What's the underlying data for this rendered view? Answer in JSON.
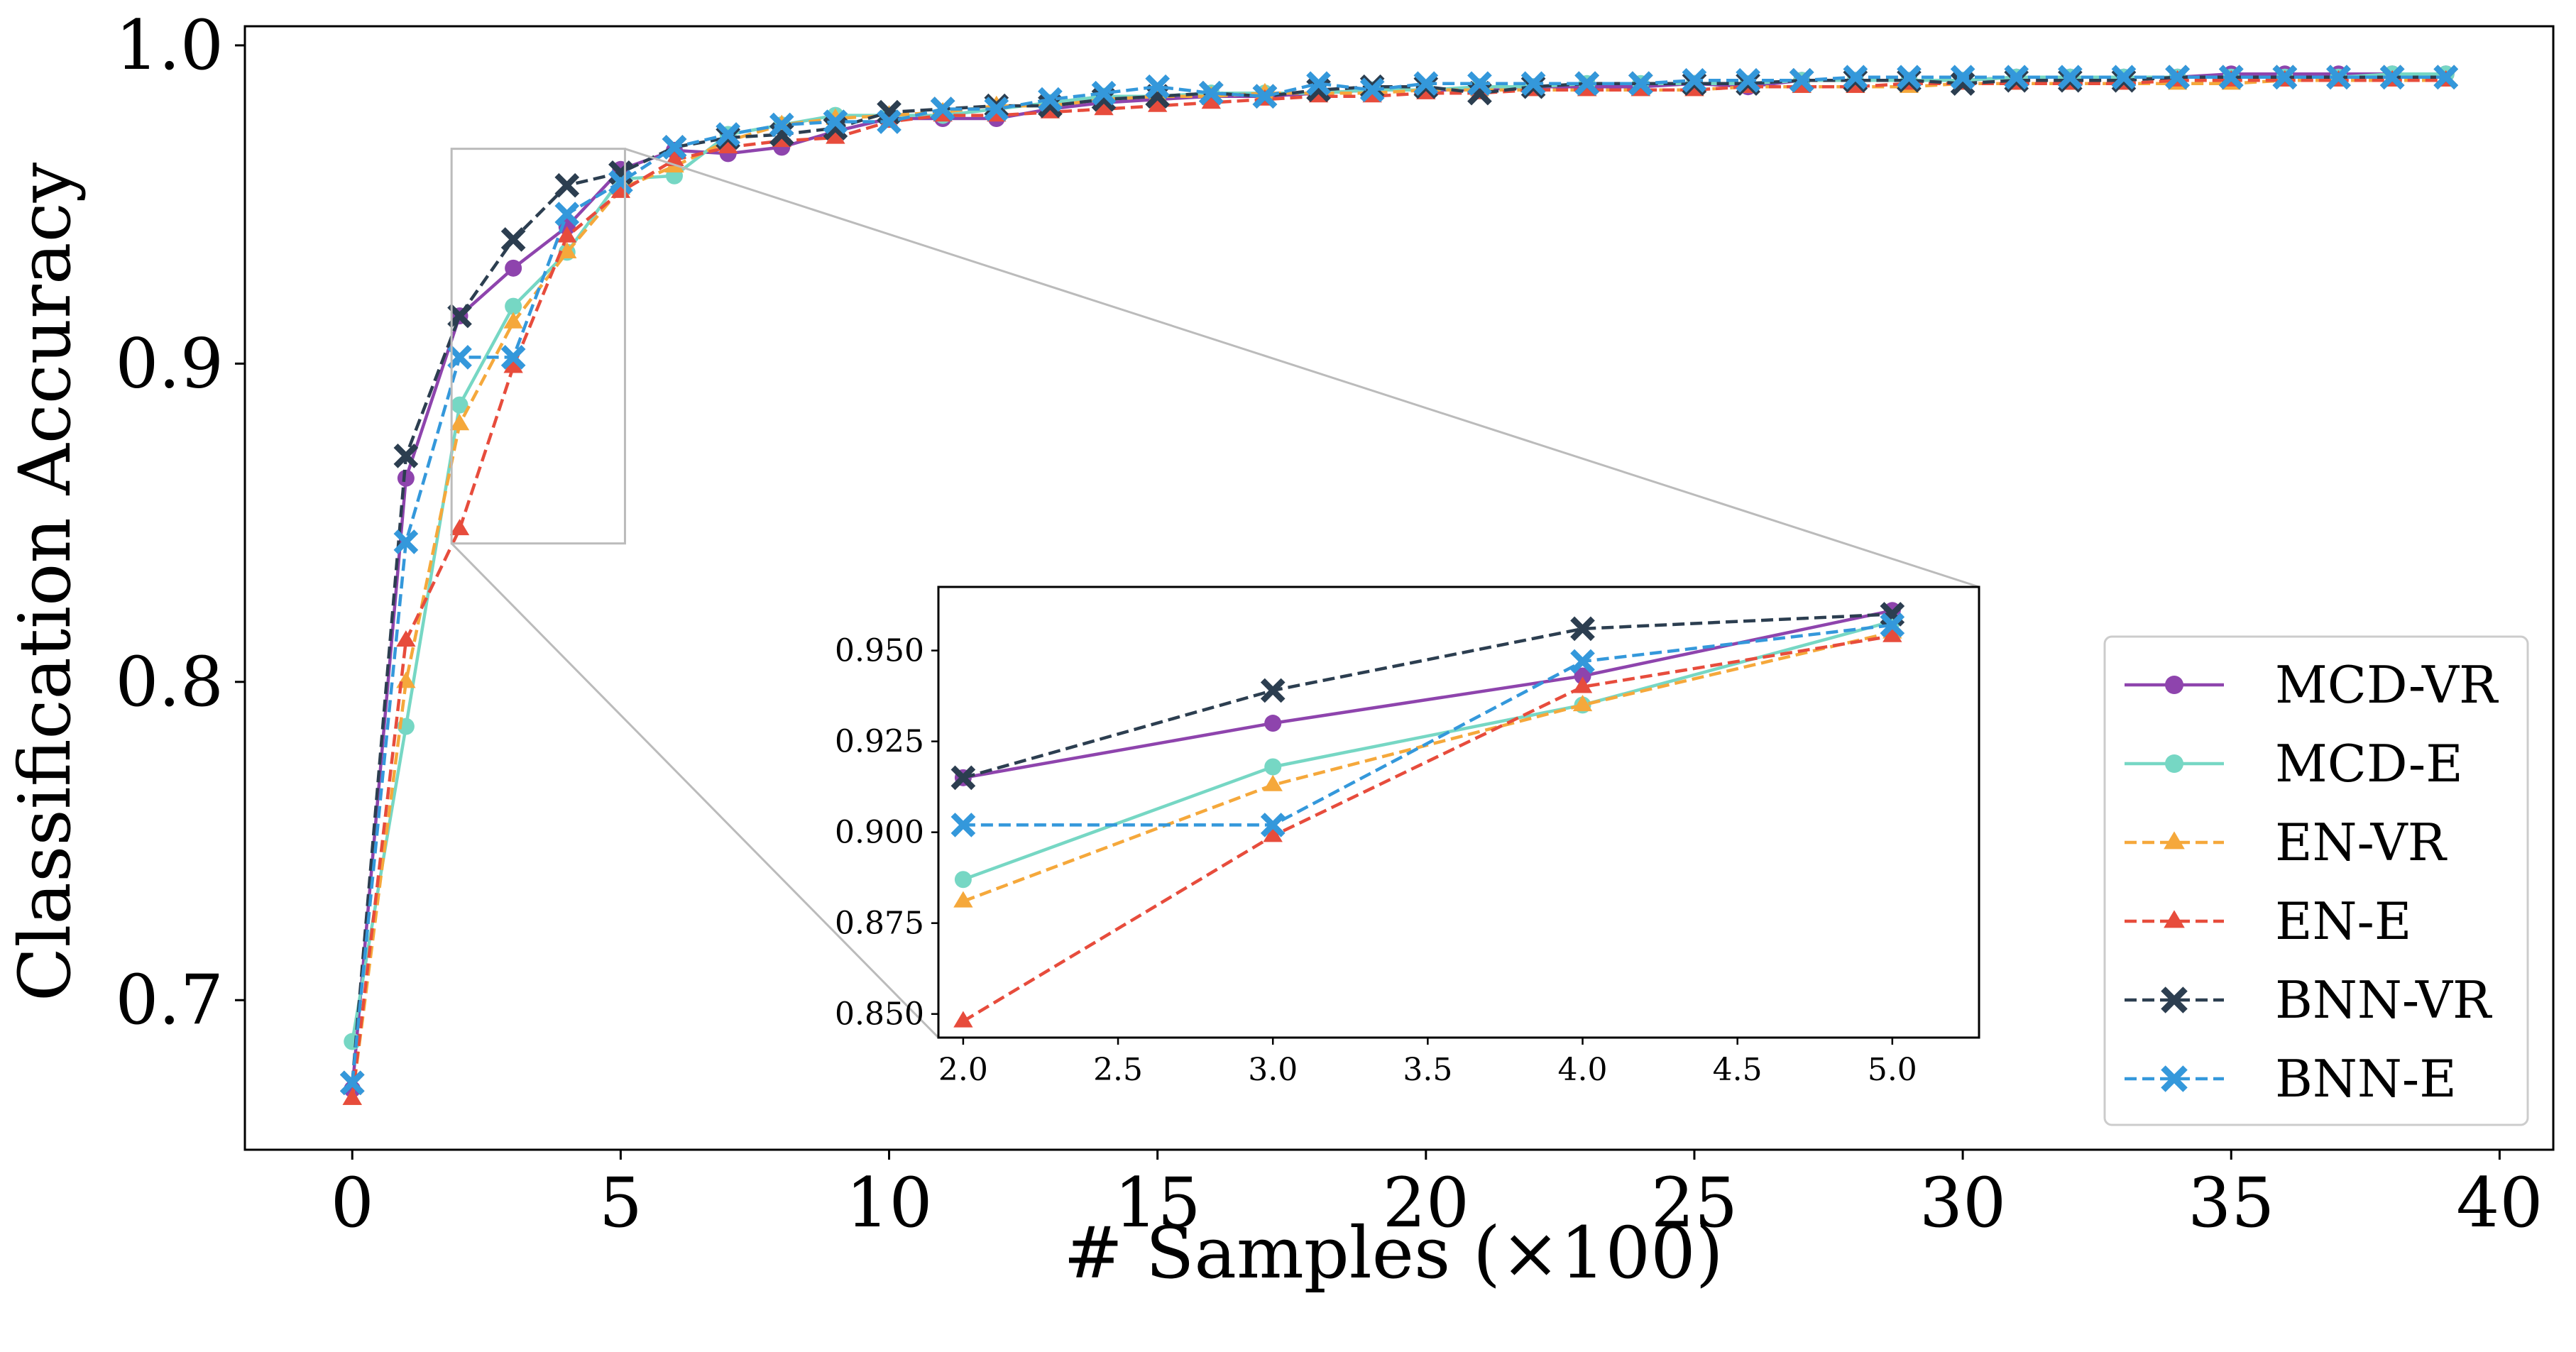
{
  "chart_data": {
    "type": "line",
    "xlabel": "# Samples (×100)",
    "ylabel": "Classification Accuracy",
    "xlim": [
      -2,
      41
    ],
    "ylim": [
      0.653,
      1.006
    ],
    "xticks": [
      "0",
      "5",
      "10",
      "15",
      "20",
      "25",
      "30",
      "35",
      "40"
    ],
    "yticks": [
      "0.7",
      "0.8",
      "0.9",
      "1.0"
    ],
    "legend_position": "bottom-right",
    "x": [
      0,
      1,
      2,
      3,
      4,
      5,
      6,
      7,
      8,
      9,
      10,
      11,
      12,
      13,
      14,
      15,
      16,
      17,
      18,
      19,
      20,
      21,
      22,
      23,
      24,
      25,
      26,
      27,
      28,
      29,
      30,
      31,
      32,
      33,
      34,
      35,
      36,
      37,
      38,
      39
    ],
    "series": [
      {
        "name": "MCD-VR",
        "color": "#8e44ad",
        "dash": false,
        "marker": "circle",
        "values": [
          0.672,
          0.864,
          0.915,
          0.93,
          0.943,
          0.961,
          0.967,
          0.966,
          0.968,
          0.973,
          0.977,
          0.977,
          0.977,
          0.98,
          0.982,
          0.983,
          0.984,
          0.984,
          0.985,
          0.986,
          0.986,
          0.986,
          0.987,
          0.987,
          0.987,
          0.988,
          0.987,
          0.989,
          0.989,
          0.989,
          0.989,
          0.99,
          0.99,
          0.99,
          0.99,
          0.991,
          0.991,
          0.991,
          0.991,
          0.991
        ]
      },
      {
        "name": "MCD-E",
        "color": "#76d7c4",
        "dash": false,
        "marker": "circle",
        "values": [
          0.687,
          0.786,
          0.887,
          0.918,
          0.935,
          0.958,
          0.959,
          0.972,
          0.975,
          0.978,
          0.978,
          0.978,
          0.98,
          0.982,
          0.984,
          0.984,
          0.985,
          0.985,
          0.985,
          0.986,
          0.986,
          0.987,
          0.987,
          0.988,
          0.988,
          0.988,
          0.988,
          0.989,
          0.989,
          0.989,
          0.989,
          0.99,
          0.99,
          0.99,
          0.99,
          0.99,
          0.99,
          0.99,
          0.991,
          0.991
        ]
      },
      {
        "name": "EN-VR",
        "color": "#f5a83b",
        "dash": true,
        "marker": "triangle",
        "values": [
          0.669,
          0.8,
          0.881,
          0.913,
          0.935,
          0.955,
          0.962,
          0.97,
          0.975,
          0.977,
          0.978,
          0.979,
          0.981,
          0.981,
          0.983,
          0.984,
          0.984,
          0.985,
          0.985,
          0.985,
          0.986,
          0.986,
          0.986,
          0.986,
          0.986,
          0.986,
          0.987,
          0.987,
          0.987,
          0.987,
          0.988,
          0.988,
          0.988,
          0.988,
          0.988,
          0.988,
          0.989,
          0.989,
          0.989,
          0.989
        ]
      },
      {
        "name": "EN-E",
        "color": "#e74c3c",
        "dash": true,
        "marker": "triangle",
        "values": [
          0.669,
          0.813,
          0.848,
          0.899,
          0.94,
          0.954,
          0.964,
          0.968,
          0.97,
          0.971,
          0.976,
          0.978,
          0.978,
          0.979,
          0.98,
          0.981,
          0.982,
          0.983,
          0.984,
          0.984,
          0.985,
          0.985,
          0.986,
          0.986,
          0.986,
          0.986,
          0.987,
          0.987,
          0.987,
          0.988,
          0.988,
          0.988,
          0.988,
          0.988,
          0.989,
          0.989,
          0.989,
          0.989,
          0.989,
          0.989
        ]
      },
      {
        "name": "BNN-VR",
        "color": "#2c3e50",
        "dash": true,
        "marker": "x",
        "values": [
          0.674,
          0.871,
          0.915,
          0.939,
          0.956,
          0.96,
          0.968,
          0.971,
          0.972,
          0.974,
          0.979,
          0.98,
          0.981,
          0.981,
          0.983,
          0.984,
          0.985,
          0.984,
          0.986,
          0.987,
          0.987,
          0.985,
          0.987,
          0.988,
          0.988,
          0.988,
          0.988,
          0.989,
          0.989,
          0.989,
          0.988,
          0.989,
          0.989,
          0.989,
          0.99,
          0.99,
          0.99,
          0.99,
          0.99,
          0.99
        ]
      },
      {
        "name": "BNN-E",
        "color": "#3498db",
        "dash": true,
        "marker": "x",
        "values": [
          0.674,
          0.844,
          0.902,
          0.902,
          0.947,
          0.957,
          0.968,
          0.972,
          0.975,
          0.976,
          0.976,
          0.98,
          0.98,
          0.983,
          0.985,
          0.987,
          0.985,
          0.984,
          0.988,
          0.986,
          0.988,
          0.988,
          0.988,
          0.988,
          0.988,
          0.989,
          0.989,
          0.989,
          0.99,
          0.99,
          0.99,
          0.99,
          0.99,
          0.99,
          0.99,
          0.99,
          0.99,
          0.99,
          0.99,
          0.99
        ]
      }
    ],
    "inset": {
      "x_range": [
        2,
        5
      ],
      "xlim": [
        1.92,
        5.28
      ],
      "ylim": [
        0.8435,
        0.9675
      ],
      "xticks": [
        "2.0",
        "2.5",
        "3.0",
        "3.5",
        "4.0",
        "4.5",
        "5.0"
      ],
      "yticks": [
        "0.850",
        "0.875",
        "0.900",
        "0.925",
        "0.950"
      ]
    }
  }
}
